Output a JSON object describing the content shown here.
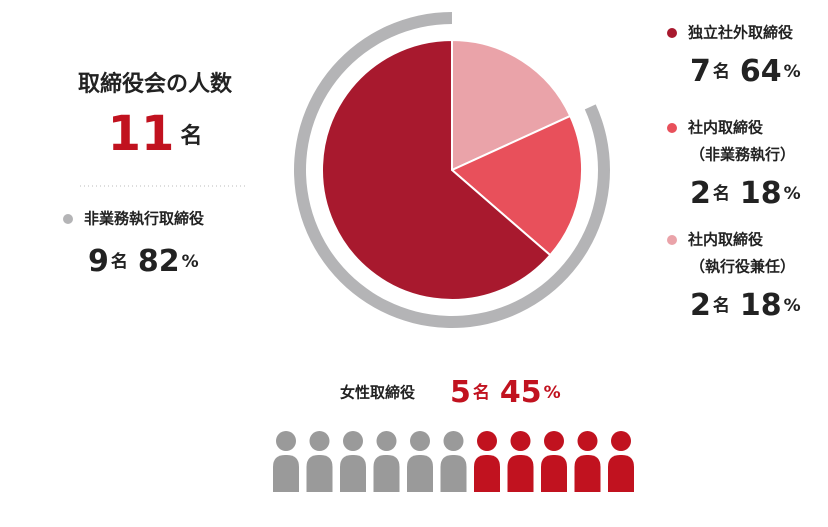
{
  "chart_data": {
    "type": "pie",
    "title": "取締役会の人数",
    "total": 11,
    "unit": "名",
    "percent_unit": "%",
    "categories": [
      [
        "独立社外取締役"
      ],
      [
        "社内取締役",
        "（非業務執行）"
      ],
      [
        "社内取締役",
        "（執行役兼任）"
      ]
    ],
    "values": [
      7,
      2,
      2
    ],
    "percents": [
      64,
      18,
      18
    ],
    "colors": [
      "#a8192e",
      "#e8505b",
      "#eaa3a9"
    ],
    "ring": {
      "name": "非業務執行取締役",
      "value": 9,
      "percent": 82,
      "color": "#b4b4b6"
    },
    "women": {
      "name": "女性取締役",
      "value": 5,
      "percent": 45,
      "color": "#c1121f",
      "other_color": "#9a9a9a"
    }
  }
}
